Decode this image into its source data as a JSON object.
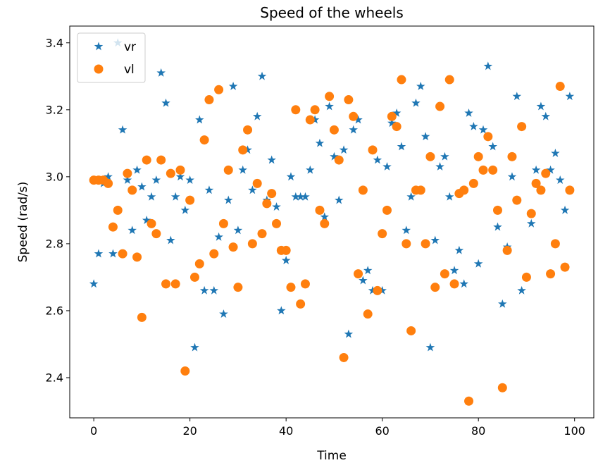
{
  "chart_data": {
    "type": "scatter",
    "title": "Speed of the wheels",
    "xlabel": "Time",
    "ylabel": "Speed (rad/s)",
    "xlim": [
      -5,
      104
    ],
    "ylim": [
      2.28,
      3.45
    ],
    "xticks": [
      0,
      20,
      40,
      60,
      80,
      100
    ],
    "yticks": [
      2.4,
      2.6,
      2.8,
      3.0,
      3.2,
      3.4
    ],
    "grid": false,
    "legend_position": "top-left",
    "x": [
      0,
      1,
      2,
      3,
      4,
      5,
      6,
      7,
      8,
      9,
      10,
      11,
      12,
      13,
      14,
      15,
      16,
      17,
      18,
      19,
      20,
      21,
      22,
      23,
      24,
      25,
      26,
      27,
      28,
      29,
      30,
      31,
      32,
      33,
      34,
      35,
      36,
      37,
      38,
      39,
      40,
      41,
      42,
      43,
      44,
      45,
      46,
      47,
      48,
      49,
      50,
      51,
      52,
      53,
      54,
      55,
      56,
      57,
      58,
      59,
      60,
      61,
      62,
      63,
      64,
      65,
      66,
      67,
      68,
      69,
      70,
      71,
      72,
      73,
      74,
      75,
      76,
      77,
      78,
      79,
      80,
      81,
      82,
      83,
      84,
      85,
      86,
      87,
      88,
      89,
      90,
      91,
      92,
      93,
      94,
      95,
      96,
      97,
      98,
      99
    ],
    "series": [
      {
        "name": "vr",
        "marker": "star",
        "color": "#1f77b4",
        "values": [
          2.68,
          2.77,
          2.98,
          3.0,
          2.77,
          3.4,
          3.14,
          2.99,
          2.84,
          3.02,
          2.97,
          2.87,
          2.94,
          2.99,
          3.31,
          3.22,
          2.81,
          2.94,
          3.0,
          2.9,
          2.99,
          2.49,
          3.17,
          2.66,
          2.96,
          2.66,
          2.82,
          2.59,
          2.93,
          3.27,
          2.84,
          3.02,
          3.08,
          2.96,
          3.18,
          3.3,
          2.93,
          3.05,
          2.91,
          2.6,
          2.75,
          3.0,
          2.94,
          2.94,
          2.94,
          3.02,
          3.17,
          3.1,
          2.88,
          3.21,
          3.06,
          2.93,
          3.08,
          2.53,
          3.14,
          3.17,
          2.69,
          2.72,
          2.66,
          3.05,
          2.66,
          3.03,
          3.16,
          3.19,
          3.09,
          2.84,
          2.94,
          3.22,
          3.27,
          3.12,
          2.49,
          2.81,
          3.03,
          3.06,
          2.94,
          2.72,
          2.78,
          2.68,
          3.19,
          3.15,
          2.74,
          3.14,
          3.33,
          3.09,
          2.85,
          2.62,
          2.79,
          3.0,
          3.24,
          2.66,
          2.7,
          2.86,
          3.02,
          3.21,
          3.18,
          3.02,
          3.07,
          2.99,
          2.9,
          3.24
        ]
      },
      {
        "name": "vl",
        "marker": "circle",
        "color": "#ff7f0e",
        "values": [
          2.99,
          2.99,
          2.99,
          2.98,
          2.85,
          2.9,
          2.77,
          3.01,
          2.96,
          2.76,
          2.58,
          3.05,
          2.86,
          2.83,
          3.05,
          2.68,
          3.01,
          2.68,
          3.02,
          2.42,
          2.93,
          2.7,
          2.74,
          3.11,
          3.23,
          2.77,
          3.26,
          2.86,
          3.02,
          2.79,
          2.67,
          3.08,
          3.14,
          2.8,
          2.98,
          2.83,
          2.92,
          2.95,
          2.86,
          2.78,
          2.78,
          2.67,
          3.2,
          2.62,
          2.68,
          3.17,
          3.2,
          2.9,
          2.86,
          3.24,
          3.14,
          3.05,
          2.46,
          3.23,
          3.18,
          2.71,
          2.96,
          2.59,
          3.08,
          2.66,
          2.83,
          2.9,
          3.18,
          3.15,
          3.29,
          2.8,
          2.54,
          2.96,
          2.96,
          2.8,
          3.06,
          2.67,
          3.21,
          2.71,
          3.29,
          2.68,
          2.95,
          2.96,
          2.33,
          2.98,
          3.06,
          3.02,
          3.12,
          3.02,
          2.9,
          2.37,
          2.78,
          3.06,
          2.93,
          3.15,
          2.7,
          2.89,
          2.98,
          2.96,
          3.01,
          2.71,
          2.8,
          3.27,
          2.73,
          2.96
        ]
      }
    ]
  }
}
